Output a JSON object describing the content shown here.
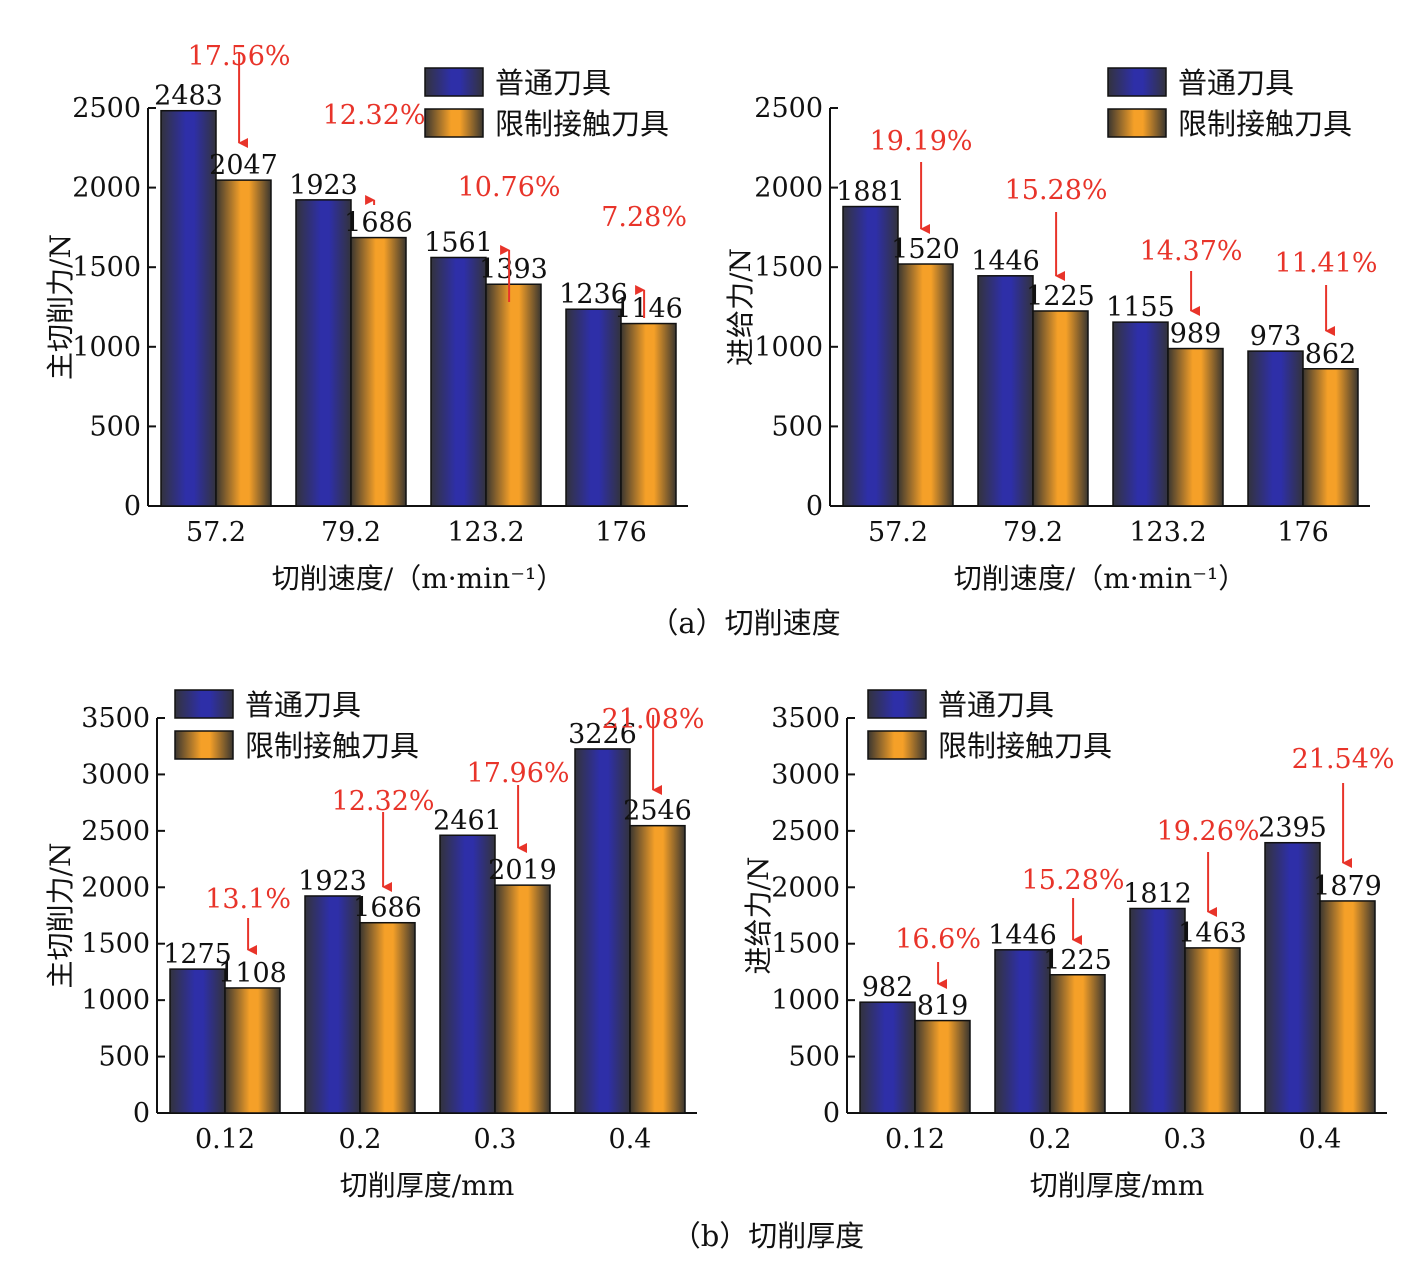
{
  "legend": {
    "series_a": "普通刀具",
    "series_b": "限制接触刀具"
  },
  "captions": {
    "a": "（a）切削速度",
    "b": "（b）切削厚度"
  },
  "colors": {
    "ordinary_center": "#2e2fa8",
    "ordinary_edge": "#33333d",
    "limited_center": "#f5a028",
    "limited_edge": "#3a3630",
    "annotation": "#e8342a",
    "axis": "#111111"
  },
  "chart_data": [
    {
      "id": "a-main",
      "type": "bar",
      "xlabel": "切削速度/（m·min⁻¹）",
      "ylabel": "主切削力/N",
      "ylim": [
        0,
        2500
      ],
      "yticks": [
        0,
        500,
        1000,
        1500,
        2000,
        2500
      ],
      "categories": [
        "57.2",
        "79.2",
        "123.2",
        "176"
      ],
      "series": [
        {
          "name": "普通刀具",
          "values": [
            2483,
            1923,
            1561,
            1236
          ]
        },
        {
          "name": "限制接触刀具",
          "values": [
            2047,
            1686,
            1393,
            1146
          ]
        }
      ],
      "reductions": [
        "17.56%",
        "12.32%",
        "10.76%",
        "7.28%"
      ],
      "legend": "top-right"
    },
    {
      "id": "a-feed",
      "type": "bar",
      "xlabel": "切削速度/（m·min⁻¹）",
      "ylabel": "进给力/N",
      "ylim": [
        0,
        2500
      ],
      "yticks": [
        0,
        500,
        1000,
        1500,
        2000,
        2500
      ],
      "categories": [
        "57.2",
        "79.2",
        "123.2",
        "176"
      ],
      "series": [
        {
          "name": "普通刀具",
          "values": [
            1881,
            1446,
            1155,
            973
          ]
        },
        {
          "name": "限制接触刀具",
          "values": [
            1520,
            1225,
            989,
            862
          ]
        }
      ],
      "reductions": [
        "19.19%",
        "15.28%",
        "14.37%",
        "11.41%"
      ],
      "legend": "top-right"
    },
    {
      "id": "b-main",
      "type": "bar",
      "xlabel": "切削厚度/mm",
      "ylabel": "主切削力/N",
      "ylim": [
        0,
        3500
      ],
      "yticks": [
        0,
        500,
        1000,
        1500,
        2000,
        2500,
        3000,
        3500
      ],
      "categories": [
        "0.12",
        "0.2",
        "0.3",
        "0.4"
      ],
      "series": [
        {
          "name": "普通刀具",
          "values": [
            1275,
            1923,
            2461,
            3226
          ]
        },
        {
          "name": "限制接触刀具",
          "values": [
            1108,
            1686,
            2019,
            2546
          ]
        }
      ],
      "reductions": [
        "13.1%",
        "12.32%",
        "17.96%",
        "21.08%"
      ],
      "legend": "top-left"
    },
    {
      "id": "b-feed",
      "type": "bar",
      "xlabel": "切削厚度/mm",
      "ylabel": "进给力/N",
      "ylim": [
        0,
        3500
      ],
      "yticks": [
        0,
        500,
        1000,
        1500,
        2000,
        2500,
        3000,
        3500
      ],
      "categories": [
        "0.12",
        "0.2",
        "0.3",
        "0.4"
      ],
      "series": [
        {
          "name": "普通刀具",
          "values": [
            982,
            1446,
            1812,
            2395
          ]
        },
        {
          "name": "限制接触刀具",
          "values": [
            819,
            1225,
            1463,
            1879
          ]
        }
      ],
      "reductions": [
        "16.6%",
        "15.28%",
        "19.26%",
        "21.54%"
      ],
      "legend": "top-left"
    }
  ]
}
